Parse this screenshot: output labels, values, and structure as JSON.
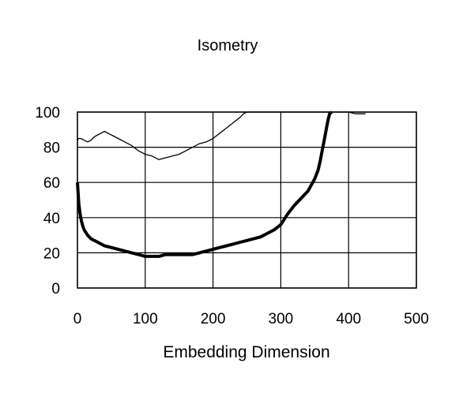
{
  "chart_data": {
    "type": "line",
    "title": "Isometry",
    "xlabel": "Embedding Dimension",
    "ylabel": "",
    "xlim": [
      0,
      500
    ],
    "ylim": [
      0,
      100
    ],
    "xticks": [
      0,
      100,
      200,
      300,
      400,
      500
    ],
    "yticks": [
      0,
      20,
      40,
      60,
      80,
      100
    ],
    "grid": true,
    "legend": "none",
    "series": [
      {
        "style": "thin",
        "x": [
          0,
          2,
          5,
          10,
          15,
          20,
          25,
          30,
          35,
          40,
          45,
          50,
          60,
          70,
          80,
          90,
          100,
          110,
          120,
          130,
          140,
          150,
          160,
          170,
          180,
          190,
          200,
          210,
          220,
          230,
          240,
          245,
          250,
          260,
          270,
          280,
          290,
          300,
          310,
          320,
          330,
          340,
          350,
          360,
          370,
          380,
          390,
          400,
          410,
          420,
          425
        ],
        "values": [
          84,
          85,
          85,
          84,
          83,
          84,
          86,
          87,
          88,
          89,
          88,
          87,
          85,
          83,
          81,
          78,
          76,
          75,
          73,
          74,
          75,
          76,
          78,
          80,
          82,
          83,
          85,
          88,
          91,
          94,
          97,
          99,
          100,
          100,
          100,
          100,
          100,
          100,
          100,
          100,
          100,
          100,
          100,
          100,
          100,
          100,
          100,
          100,
          99,
          99,
          99
        ]
      },
      {
        "style": "thick",
        "x": [
          0,
          2,
          4,
          6,
          8,
          10,
          15,
          20,
          30,
          40,
          50,
          60,
          70,
          80,
          90,
          100,
          110,
          120,
          130,
          140,
          150,
          160,
          170,
          180,
          190,
          200,
          210,
          220,
          230,
          240,
          250,
          260,
          270,
          280,
          290,
          300,
          310,
          320,
          330,
          340,
          350,
          355,
          358,
          360,
          362,
          365,
          368,
          370,
          372,
          375
        ],
        "values": [
          60,
          48,
          42,
          38,
          35,
          33,
          30,
          28,
          26,
          24,
          23,
          22,
          21,
          20,
          19,
          18,
          18,
          18,
          19,
          19,
          19,
          19,
          19,
          20,
          21,
          22,
          23,
          24,
          25,
          26,
          27,
          28,
          29,
          31,
          33,
          36,
          42,
          47,
          51,
          55,
          62,
          67,
          72,
          76,
          80,
          86,
          92,
          96,
          99,
          100
        ]
      }
    ]
  }
}
